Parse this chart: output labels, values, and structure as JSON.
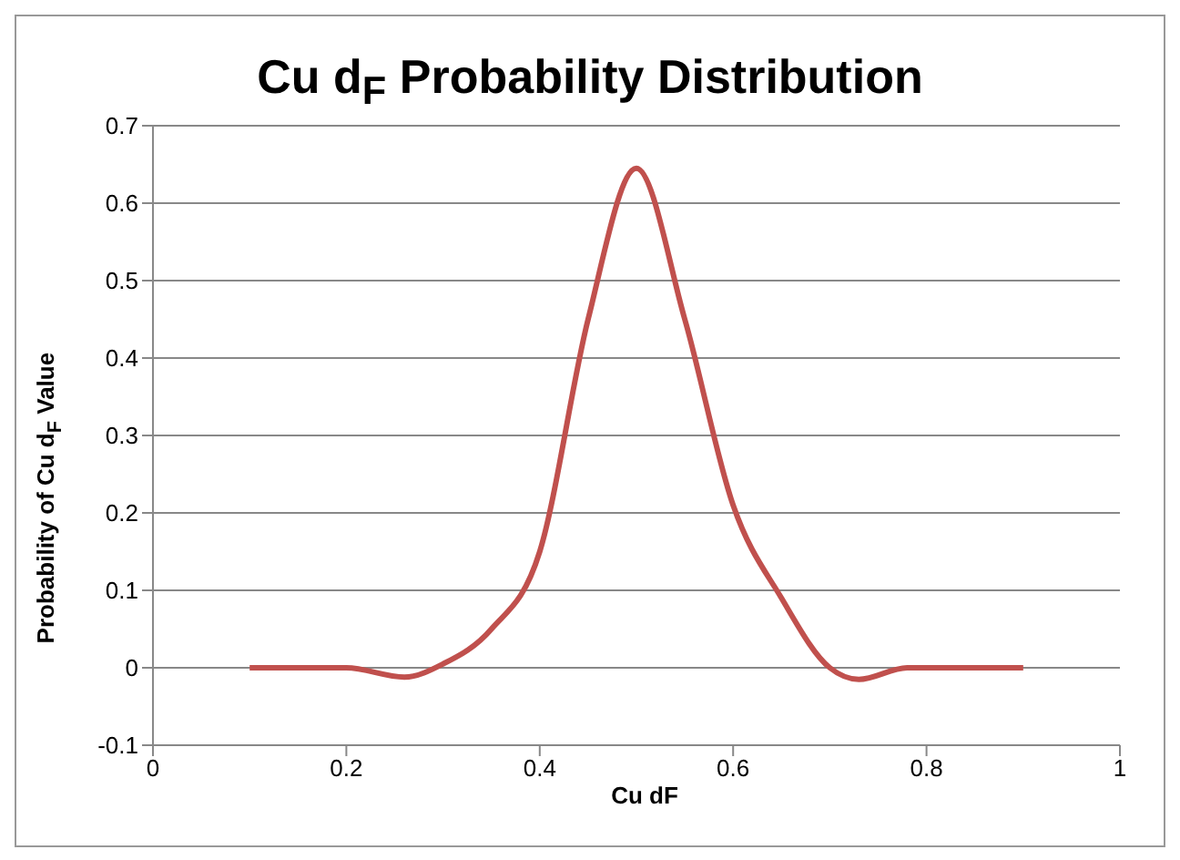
{
  "chart_data": {
    "type": "line",
    "title": "Cu d$_{F}$ Probability Distribution",
    "xlabel": "Cu dF",
    "ylabel": "Probability  of Cu d$_{F}$ Value",
    "x": [
      0.1,
      0.2,
      0.26,
      0.3,
      0.35,
      0.4,
      0.45,
      0.5,
      0.55,
      0.6,
      0.65,
      0.7,
      0.73,
      0.78,
      0.8,
      0.9
    ],
    "series": [
      {
        "color": "#c0504d",
        "values": [
          0,
          0,
          -0.012,
          0.005,
          0.05,
          0.15,
          0.45,
          0.645,
          0.45,
          0.21,
          0.09,
          0.0,
          -0.015,
          0,
          0,
          0
        ]
      }
    ],
    "xlim": [
      0,
      1
    ],
    "xticks": [
      0,
      0.2,
      0.4,
      0.6,
      0.8,
      1
    ],
    "ylim": [
      -0.1,
      0.7
    ],
    "yticks": [
      -0.1,
      0,
      0.1,
      0.2,
      0.3,
      0.4,
      0.5,
      0.6,
      0.7
    ],
    "grid": "y",
    "legend": false
  }
}
